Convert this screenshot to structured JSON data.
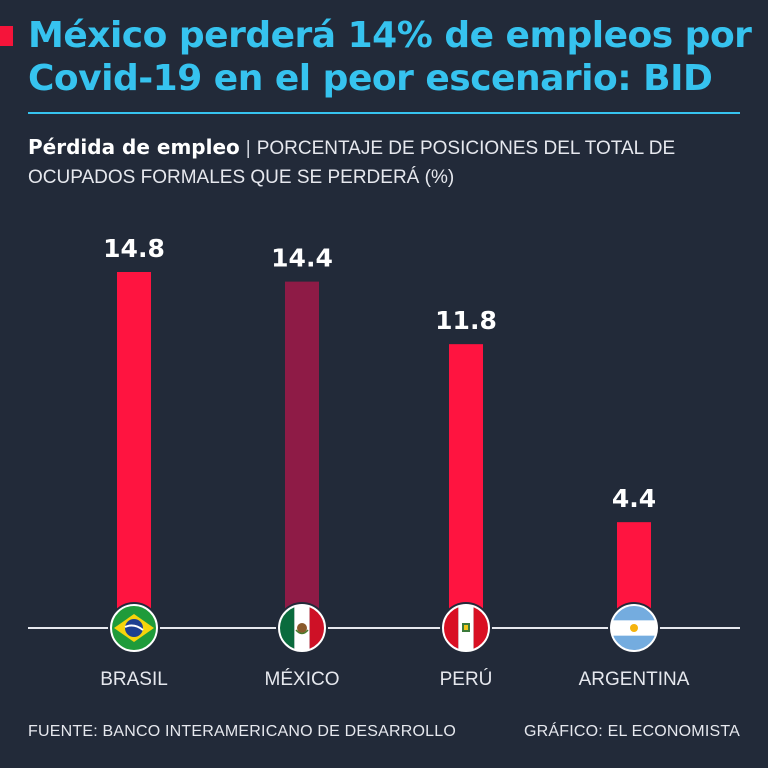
{
  "title": "México perderá 14% de empleos por Covid-19 en el peor escenario: BID",
  "subtitle": {
    "bold": "Pérdida de empleo",
    "separator": "|",
    "text": "PORCENTAJE DE POSICIONES DEL TOTAL DE OCUPADOS FORMALES QUE SE PERDERÁ (%)"
  },
  "colors": {
    "title": "#36c3ef",
    "bar": "#ff1440",
    "highlight_bar": "#8e1b46",
    "background": "#222a39"
  },
  "chart_data": {
    "type": "bar",
    "title": "Pérdida de empleo",
    "categories": [
      "BRASIL",
      "MÉXICO",
      "PERÚ",
      "ARGENTINA"
    ],
    "values": [
      14.8,
      14.4,
      11.8,
      4.4
    ],
    "value_labels": [
      "14.8",
      "14.4",
      "11.8",
      "4.4"
    ],
    "highlight": "MÉXICO",
    "flags": [
      "brazil-flag-icon",
      "mexico-flag-icon",
      "peru-flag-icon",
      "argentina-flag-icon"
    ],
    "ylim": [
      0,
      16
    ],
    "xlabel": "",
    "ylabel": "",
    "grid": false
  },
  "footer": {
    "source": "FUENTE: BANCO INTERAMERICANO DE DESARROLLO",
    "credit": "GRÁFICO: EL ECONOMISTA"
  }
}
